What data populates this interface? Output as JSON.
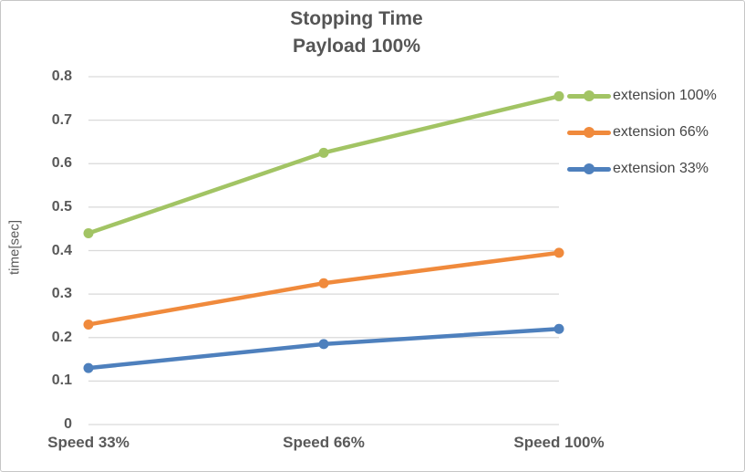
{
  "chart_data": {
    "type": "line",
    "title": "Stopping Time",
    "subtitle": "Payload 100%",
    "ylabel": "time[sec]",
    "categories": [
      "Speed 33%",
      "Speed 66%",
      "Speed 100%"
    ],
    "series": [
      {
        "name": "extension 100%",
        "color": "#a2c464",
        "values": [
          0.44,
          0.625,
          0.755
        ]
      },
      {
        "name": "extension 66%",
        "color": "#f08a3c",
        "values": [
          0.23,
          0.325,
          0.395
        ]
      },
      {
        "name": "extension 33%",
        "color": "#4e80bd",
        "values": [
          0.13,
          0.185,
          0.22
        ]
      }
    ],
    "ylim": [
      0,
      0.8
    ],
    "ytick_step": 0.1,
    "ytick_labels": [
      "0",
      "0.1",
      "0.2",
      "0.3",
      "0.4",
      "0.5",
      "0.6",
      "0.7",
      "0.8"
    ],
    "grid": true,
    "legend_position": "right",
    "marker": "circle"
  }
}
